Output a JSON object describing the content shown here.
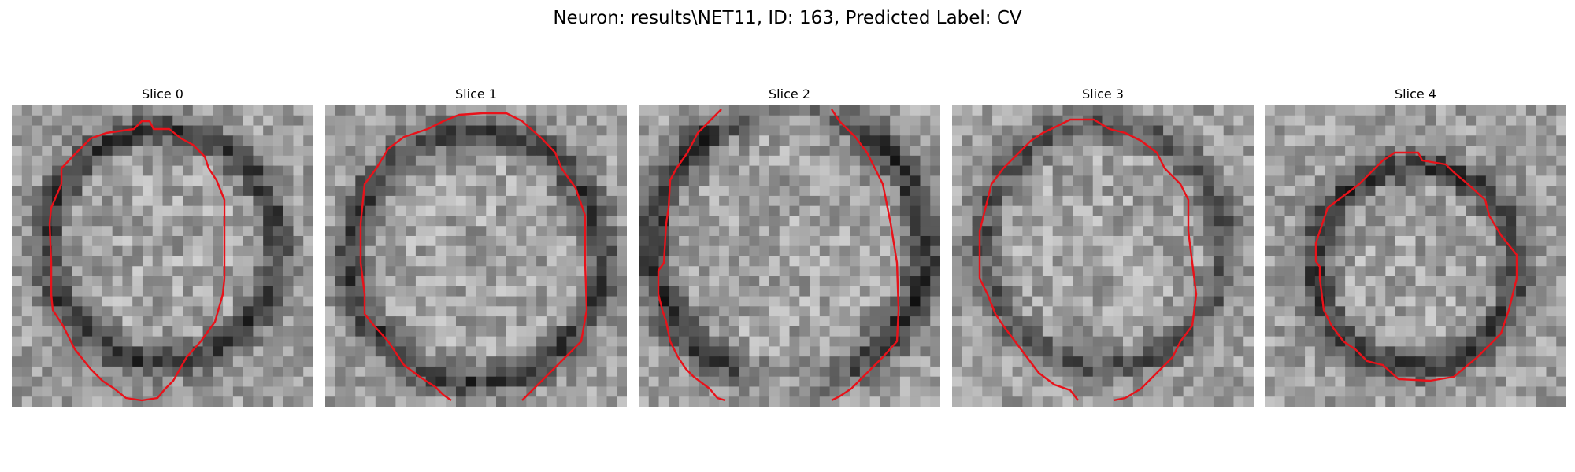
{
  "figure": {
    "title": "Neuron: results\\NET11, ID: 163, Predicted Label: CV"
  },
  "panels": [
    {
      "title": "Slice 0",
      "dark_ring": "ring",
      "contour": "closed"
    },
    {
      "title": "Slice 1",
      "dark_ring": "ring",
      "contour": "open-bottom"
    },
    {
      "title": "Slice 2",
      "dark_ring": "sides",
      "contour": "open-top-bottom"
    },
    {
      "title": "Slice 3",
      "dark_ring": "faint",
      "contour": "open-bottom"
    },
    {
      "title": "Slice 4",
      "dark_ring": "ring",
      "contour": "closed"
    }
  ],
  "colors": {
    "contour": "#e8121a",
    "background": "#ffffff"
  }
}
